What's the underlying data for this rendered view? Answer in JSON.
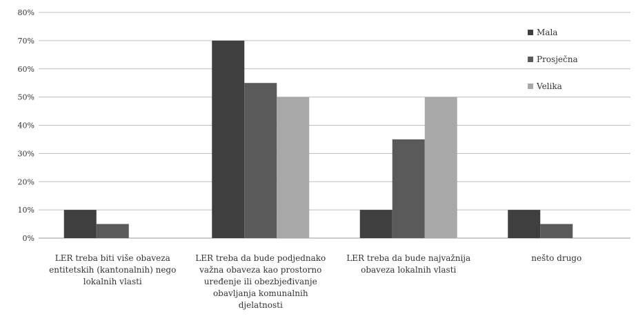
{
  "chart_data": {
    "type": "bar",
    "categories": [
      "LER treba biti više obaveza entitetskih (kantonalnih) nego lokalnih vlasti",
      "LER treba da bude podjednako važna obaveza kao prostorno uređenje ili obezbjeđivanje obavljanja komunalnih djelatnosti",
      "LER treba da bude najvažnija obaveza lokalnih vlasti",
      "nešto drugo"
    ],
    "series": [
      {
        "name": "Mala",
        "values": [
          10,
          70,
          10,
          10
        ],
        "color": "#3f3f3f"
      },
      {
        "name": "Prosječna",
        "values": [
          5,
          55,
          35,
          5
        ],
        "color": "#5a5a5a"
      },
      {
        "name": "Velika",
        "values": [
          0,
          50,
          50,
          0
        ],
        "color": "#a8a8a8"
      }
    ],
    "ylim": [
      0,
      80
    ],
    "yticks": [
      "0%",
      "10%",
      "20%",
      "30%",
      "40%",
      "50%",
      "60%",
      "70%",
      "80%"
    ],
    "grid": true,
    "legend": "top-right",
    "xlabel": "",
    "ylabel": ""
  }
}
